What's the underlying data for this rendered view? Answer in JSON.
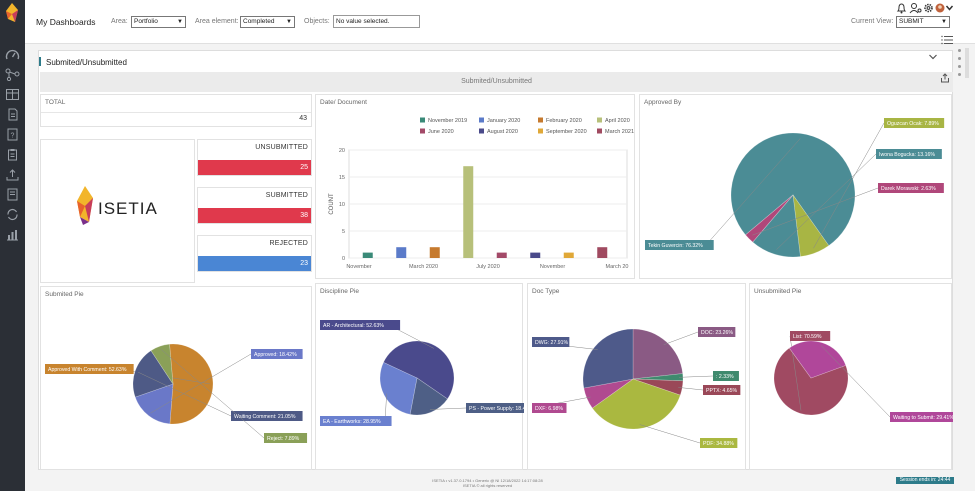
{
  "header": {
    "title": "My Dashboards",
    "area_label": "Area:",
    "area_value": "Portfolio",
    "area_element_label": "Area element:",
    "area_element_value": "Completed",
    "objects_label": "Objects:",
    "objects_value": "No value selected.",
    "current_view_label": "Current View:",
    "current_view_value": "SUBMIT"
  },
  "main": {
    "widget_title": "Submited/Unsubmitted",
    "band_title": "Submited/Unsubmitted"
  },
  "total": {
    "label": "TOTAL",
    "value": "43"
  },
  "logo_text": "ISETIA",
  "stats": [
    {
      "label": "UNSUBMITTED",
      "value": "25",
      "color": "#e0394c"
    },
    {
      "label": "SUBMITTED",
      "value": "38",
      "color": "#e0394c"
    },
    {
      "label": "REJECTED",
      "value": "23",
      "color": "#4a86d4"
    }
  ],
  "date_chart_title": "Date/ Document",
  "approved_title": "Approved By",
  "submitted_pie_title": "Submited Pie",
  "discipline_title": "Discipline Pie",
  "doctype_title": "Doc Type",
  "unsubmitted_pie_title": "Unsubmiited Pie",
  "chart_data": [
    {
      "type": "bar",
      "title": "Date/ Document",
      "ylabel": "COUNT",
      "ylim": [
        0,
        20
      ],
      "yticks": [
        0,
        5,
        10,
        15,
        20
      ],
      "xticks": [
        "November",
        "March 2020",
        "July 2020",
        "November",
        "March 20"
      ],
      "legend_position": "top",
      "series": [
        {
          "name": "November 2019",
          "color": "#3a8a78",
          "value": 1
        },
        {
          "name": "January 2020",
          "color": "#5b7bc9",
          "value": 2
        },
        {
          "name": "February 2020",
          "color": "#c67a2e",
          "value": 2
        },
        {
          "name": "April 2020",
          "color": "#b7c07a",
          "value": 17
        },
        {
          "name": "June 2020",
          "color": "#a34a68",
          "value": 1
        },
        {
          "name": "August 2020",
          "color": "#4a4a8a",
          "value": 1
        },
        {
          "name": "September 2020",
          "color": "#e0a838",
          "value": 1
        },
        {
          "name": "March 2021",
          "color": "#a04a60",
          "value": 2
        }
      ]
    },
    {
      "type": "pie",
      "title": "Approved By",
      "slices": [
        {
          "label": "Tekin Guvercin: 76.32%",
          "value": 76.32,
          "color": "#4b8c95"
        },
        {
          "label": "Oguzcan Ocak: 7.89%",
          "value": 7.89,
          "color": "#a8b544"
        },
        {
          "label": "Iwona Bogucka: 13.16%",
          "value": 13.16,
          "color": "#4b8c95"
        },
        {
          "label": "Darek Morawski: 2.63%",
          "value": 2.63,
          "color": "#b0477a"
        }
      ]
    },
    {
      "type": "pie",
      "title": "Submited Pie",
      "slices": [
        {
          "label": "Approved With Comment: 52.63%",
          "value": 52.63,
          "color": "#c8842e"
        },
        {
          "label": "Approved: 18.42%",
          "value": 18.42,
          "color": "#6a78c8"
        },
        {
          "label": "Waiting Comment: 21.05%",
          "value": 21.05,
          "color": "#4e5a86"
        },
        {
          "label": "Reject: 7.89%",
          "value": 7.89,
          "color": "#8aa058"
        }
      ]
    },
    {
      "type": "pie",
      "title": "Discipline Pie",
      "slices": [
        {
          "label": "AR - Architectural: 52.63%",
          "value": 52.63,
          "color": "#4a4a8c"
        },
        {
          "label": "PS - Power Supply: 18.42%",
          "value": 18.42,
          "color": "#4e5f86"
        },
        {
          "label": "EA - Earthworks: 28.95%",
          "value": 28.95,
          "color": "#6a80cf"
        }
      ]
    },
    {
      "type": "pie",
      "title": "Doc Type",
      "slices": [
        {
          "label": "DOC: 23.26%",
          "value": 23.26,
          "color": "#8a5a84"
        },
        {
          "label": ": 2.33%",
          "value": 2.33,
          "color": "#3f8a6e"
        },
        {
          "label": "PPTX: 4.65%",
          "value": 4.65,
          "color": "#9a4858"
        },
        {
          "label": "PDF: 34.88%",
          "value": 34.88,
          "color": "#aab840"
        },
        {
          "label": "DXF: 6.98%",
          "value": 6.98,
          "color": "#b04a90"
        },
        {
          "label": "DWG: 27.91%",
          "value": 27.91,
          "color": "#4e5a8a"
        }
      ]
    },
    {
      "type": "pie",
      "title": "Unsubmiited Pie",
      "slices": [
        {
          "label": "List: 70.59%",
          "value": 70.59,
          "color": "#a04a62"
        },
        {
          "label": "Waiting to Submit: 29.41%",
          "value": 29.41,
          "color": "#b0479a"
        }
      ]
    }
  ],
  "footer": {
    "line1": "ISETIA • v1.37.0.1794 • Generic @ NI 12/18/2022 14:17:08:28",
    "line2": "ISETIA © all rights reserved",
    "session": "Session ends in: 24:44"
  }
}
